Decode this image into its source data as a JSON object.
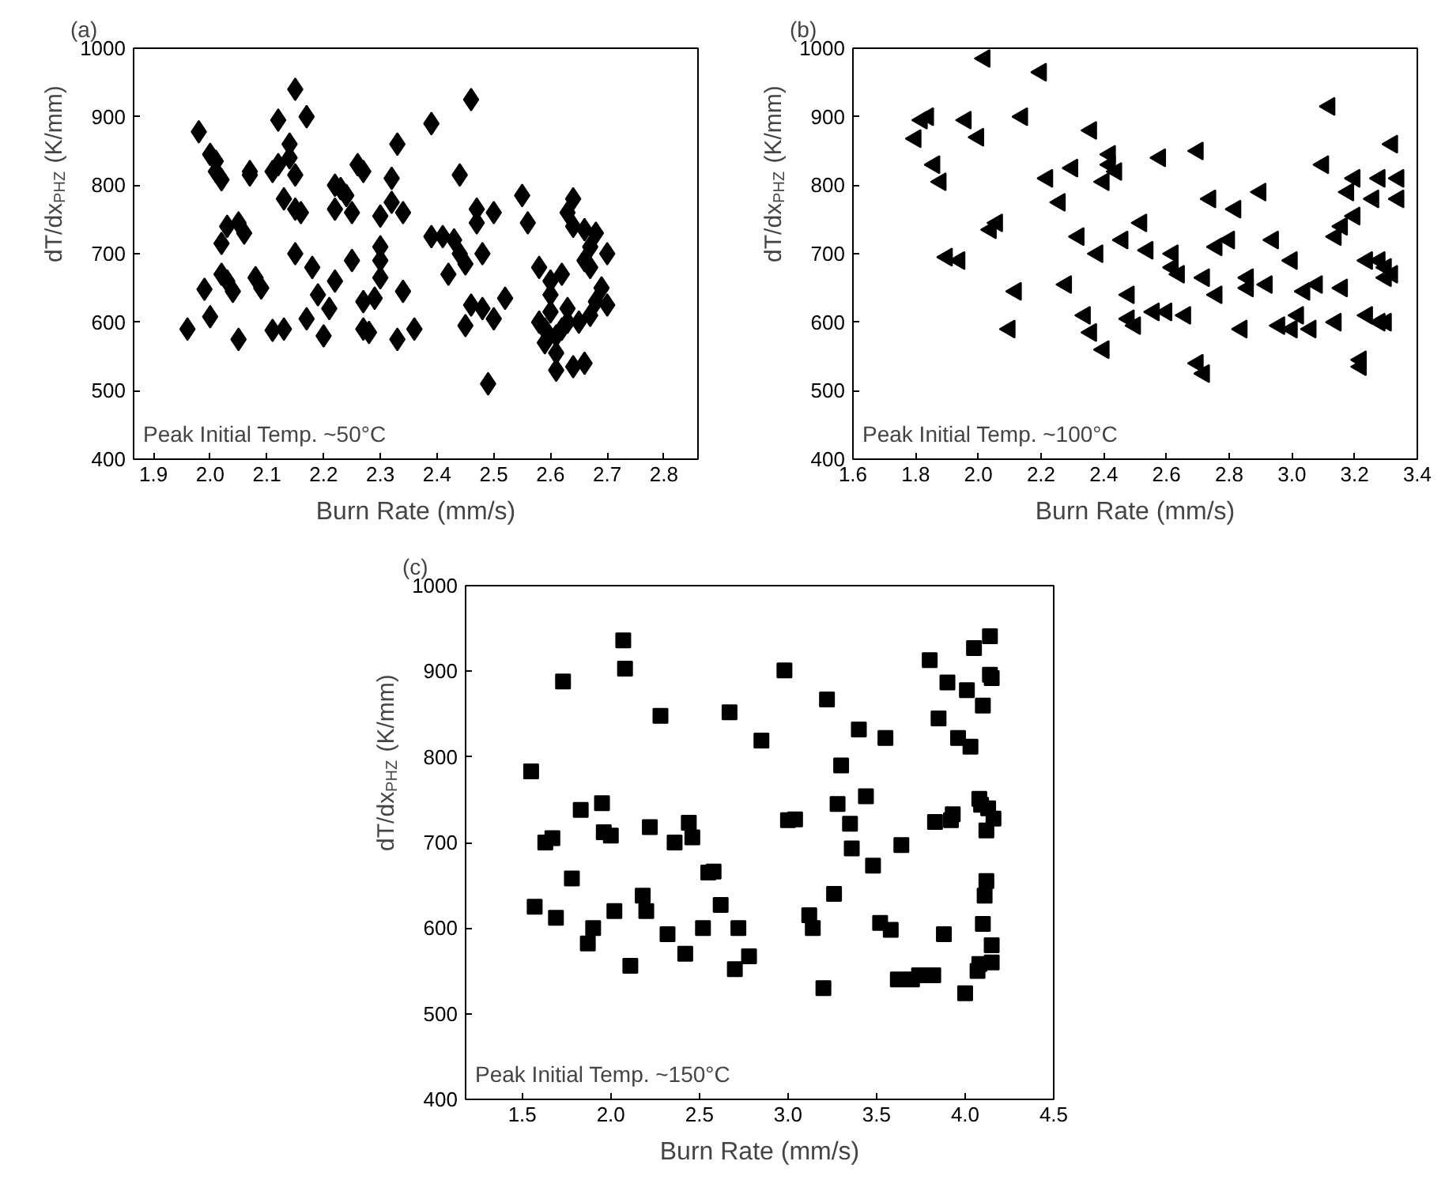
{
  "chart_data": [
    {
      "type": "scatter",
      "xlabel": "Burn Rate (mm/s)",
      "ylabel": "dT/dx$_{PHZ}$ (K/mm)",
      "annotations": [
        "(a)",
        "Peak Initial Temp. ~50°C"
      ],
      "marker": "diamond",
      "grid": false,
      "xlim": [
        1.865,
        2.86
      ],
      "xticks": [
        1.9,
        {
          "value": 2.0,
          "label": "2.0"
        },
        2.1,
        2.2,
        2.3,
        2.4,
        2.5,
        2.6,
        2.7,
        2.8
      ],
      "ylim": [
        400,
        1000
      ],
      "yticks": [
        400,
        500,
        600,
        700,
        800,
        900,
        1000
      ],
      "series": [
        {
          "color": "#000000",
          "x": [
            1.96,
            1.98,
            1.99,
            2.0,
            2.0,
            2.01,
            2.01,
            2.02,
            2.02,
            2.02,
            2.03,
            2.03,
            2.04,
            2.05,
            2.05,
            2.06,
            2.07,
            2.07,
            2.08,
            2.09,
            2.11,
            2.11,
            2.12,
            2.12,
            2.13,
            2.13,
            2.14,
            2.14,
            2.15,
            2.15,
            2.15,
            2.15,
            2.16,
            2.17,
            2.17,
            2.18,
            2.19,
            2.2,
            2.21,
            2.22,
            2.22,
            2.22,
            2.23,
            2.24,
            2.25,
            2.25,
            2.26,
            2.27,
            2.27,
            2.27,
            2.28,
            2.29,
            2.3,
            2.3,
            2.3,
            2.3,
            2.32,
            2.32,
            2.33,
            2.33,
            2.34,
            2.34,
            2.36,
            2.39,
            2.39,
            2.41,
            2.42,
            2.43,
            2.44,
            2.44,
            2.45,
            2.45,
            2.46,
            2.46,
            2.47,
            2.47,
            2.48,
            2.48,
            2.49,
            2.5,
            2.5,
            2.52,
            2.55,
            2.56,
            2.58,
            2.58,
            2.59,
            2.59,
            2.6,
            2.6,
            2.6,
            2.61,
            2.61,
            2.61,
            2.62,
            2.62,
            2.63,
            2.63,
            2.63,
            2.64,
            2.64,
            2.64,
            2.65,
            2.66,
            2.66,
            2.66,
            2.67,
            2.67,
            2.67,
            2.68,
            2.68,
            2.69,
            2.7,
            2.7
          ],
          "values": [
            590,
            878,
            648,
            845,
            608,
            835,
            820,
            808,
            715,
            670,
            740,
            660,
            645,
            575,
            745,
            730,
            820,
            815,
            665,
            650,
            588,
            820,
            895,
            830,
            780,
            590,
            860,
            840,
            940,
            815,
            700,
            765,
            760,
            605,
            900,
            680,
            640,
            580,
            620,
            765,
            800,
            660,
            795,
            785,
            690,
            760,
            830,
            820,
            630,
            590,
            585,
            635,
            710,
            690,
            665,
            755,
            810,
            775,
            575,
            860,
            760,
            645,
            590,
            890,
            725,
            725,
            670,
            720,
            815,
            700,
            595,
            685,
            625,
            925,
            765,
            745,
            700,
            620,
            510,
            605,
            760,
            635,
            785,
            745,
            680,
            600,
            590,
            570,
            640,
            660,
            615,
            530,
            555,
            580,
            670,
            590,
            760,
            620,
            600,
            780,
            740,
            535,
            600,
            735,
            690,
            540,
            710,
            680,
            610,
            630,
            730,
            650,
            625,
            700
          ]
        }
      ]
    },
    {
      "type": "scatter",
      "xlabel": "Burn Rate (mm/s)",
      "ylabel": "dT/dx$_{PHZ}$ (K/mm)",
      "annotations": [
        "(b)",
        "Peak Initial Temp. ~100°C"
      ],
      "marker": "triangle",
      "grid": false,
      "xlim": [
        1.6,
        3.4
      ],
      "xticks": [
        1.6,
        1.8,
        {
          "value": 2.0,
          "label": "2.0"
        },
        2.2,
        2.4,
        2.6,
        2.8,
        {
          "value": 3.0,
          "label": "3.0"
        },
        3.2,
        3.4
      ],
      "ylim": [
        400,
        1000
      ],
      "yticks": [
        400,
        500,
        600,
        700,
        800,
        900,
        1000
      ],
      "series": [
        {
          "color": "#000000",
          "x": [
            1.8,
            1.82,
            1.84,
            1.86,
            1.88,
            1.9,
            1.94,
            1.96,
            2.0,
            2.02,
            2.04,
            2.06,
            2.1,
            2.12,
            2.14,
            2.2,
            2.22,
            2.26,
            2.28,
            2.3,
            2.32,
            2.34,
            2.36,
            2.36,
            2.38,
            2.4,
            2.4,
            2.42,
            2.42,
            2.44,
            2.46,
            2.48,
            2.5,
            2.52,
            2.54,
            2.56,
            2.58,
            2.6,
            2.62,
            2.64,
            2.66,
            2.7,
            2.72,
            2.74,
            2.76,
            2.76,
            2.8,
            2.82,
            2.84,
            2.86,
            2.9,
            2.92,
            2.94,
            2.96,
            3.0,
            3.02,
            3.04,
            3.06,
            3.08,
            3.1,
            3.12,
            3.14,
            3.16,
            3.18,
            3.2,
            3.2,
            3.22,
            3.22,
            3.24,
            3.24,
            3.26,
            3.28,
            3.28,
            3.3,
            3.3,
            3.32,
            3.32,
            3.34,
            3.34,
            2.7,
            2.72,
            2.48,
            2.62,
            3.14,
            3.16,
            3.28,
            3.3,
            3.0,
            2.86
          ],
          "values": [
            868,
            895,
            900,
            830,
            805,
            695,
            690,
            895,
            870,
            985,
            735,
            745,
            590,
            645,
            900,
            965,
            810,
            775,
            655,
            825,
            725,
            610,
            585,
            880,
            700,
            560,
            805,
            845,
            830,
            820,
            720,
            640,
            595,
            745,
            705,
            615,
            840,
            615,
            700,
            670,
            610,
            850,
            665,
            780,
            640,
            710,
            720,
            765,
            590,
            665,
            790,
            655,
            720,
            595,
            690,
            610,
            645,
            590,
            655,
            830,
            915,
            600,
            740,
            790,
            810,
            755,
            535,
            545,
            690,
            610,
            780,
            810,
            690,
            680,
            600,
            860,
            670,
            780,
            810,
            540,
            525,
            605,
            680,
            725,
            650,
            600,
            665,
            590,
            650
          ]
        }
      ]
    },
    {
      "type": "scatter",
      "xlabel": "Burn Rate (mm/s)",
      "ylabel": "dT/dx$_{PHZ}$ (K/mm)",
      "annotations": [
        "(c)",
        "Peak Initial Temp. ~150°C"
      ],
      "marker": "square",
      "grid": false,
      "xlim": [
        1.18,
        4.5
      ],
      "xticks": [
        1.5,
        {
          "value": 2.0,
          "label": "2.0"
        },
        2.5,
        {
          "value": 3.0,
          "label": "3.0"
        },
        3.5,
        {
          "value": 4.0,
          "label": "4.0"
        },
        4.5
      ],
      "ylim": [
        400,
        1000
      ],
      "yticks": [
        400,
        500,
        600,
        700,
        800,
        900,
        1000
      ],
      "series": [
        {
          "color": "#000000",
          "x": [
            1.55,
            1.57,
            1.63,
            1.67,
            1.69,
            1.73,
            1.78,
            1.83,
            1.87,
            1.9,
            1.95,
            1.96,
            2.0,
            2.02,
            2.07,
            2.08,
            2.11,
            2.18,
            2.2,
            2.22,
            2.28,
            2.32,
            2.36,
            2.42,
            2.44,
            2.46,
            2.52,
            2.55,
            2.58,
            2.62,
            2.67,
            2.7,
            2.72,
            2.78,
            2.85,
            2.98,
            3.0,
            3.04,
            3.12,
            3.14,
            3.2,
            3.22,
            3.26,
            3.28,
            3.3,
            3.35,
            3.36,
            3.4,
            3.44,
            3.48,
            3.52,
            3.55,
            3.58,
            3.62,
            3.64,
            3.7,
            3.74,
            3.8,
            3.82,
            3.83,
            3.85,
            3.88,
            3.9,
            3.92,
            3.93,
            3.96,
            4.0,
            4.01,
            4.03,
            4.05,
            4.07,
            4.08,
            4.08,
            4.09,
            4.1,
            4.1,
            4.11,
            4.12,
            4.12,
            4.13,
            4.14,
            4.14,
            4.15,
            4.15,
            4.15,
            4.16
          ],
          "values": [
            783,
            625,
            700,
            705,
            612,
            888,
            658,
            738,
            582,
            600,
            746,
            712,
            708,
            620,
            936,
            903,
            556,
            638,
            620,
            718,
            848,
            593,
            700,
            570,
            723,
            706,
            600,
            665,
            666,
            627,
            852,
            552,
            600,
            567,
            819,
            901,
            726,
            727,
            615,
            600,
            530,
            867,
            640,
            745,
            790,
            722,
            693,
            832,
            754,
            673,
            606,
            822,
            598,
            540,
            697,
            540,
            545,
            913,
            545,
            724,
            845,
            593,
            887,
            726,
            733,
            822,
            524,
            878,
            812,
            927,
            550,
            558,
            751,
            744,
            860,
            605,
            638,
            655,
            714,
            740,
            941,
            896,
            892,
            580,
            560,
            728
          ]
        }
      ]
    }
  ]
}
